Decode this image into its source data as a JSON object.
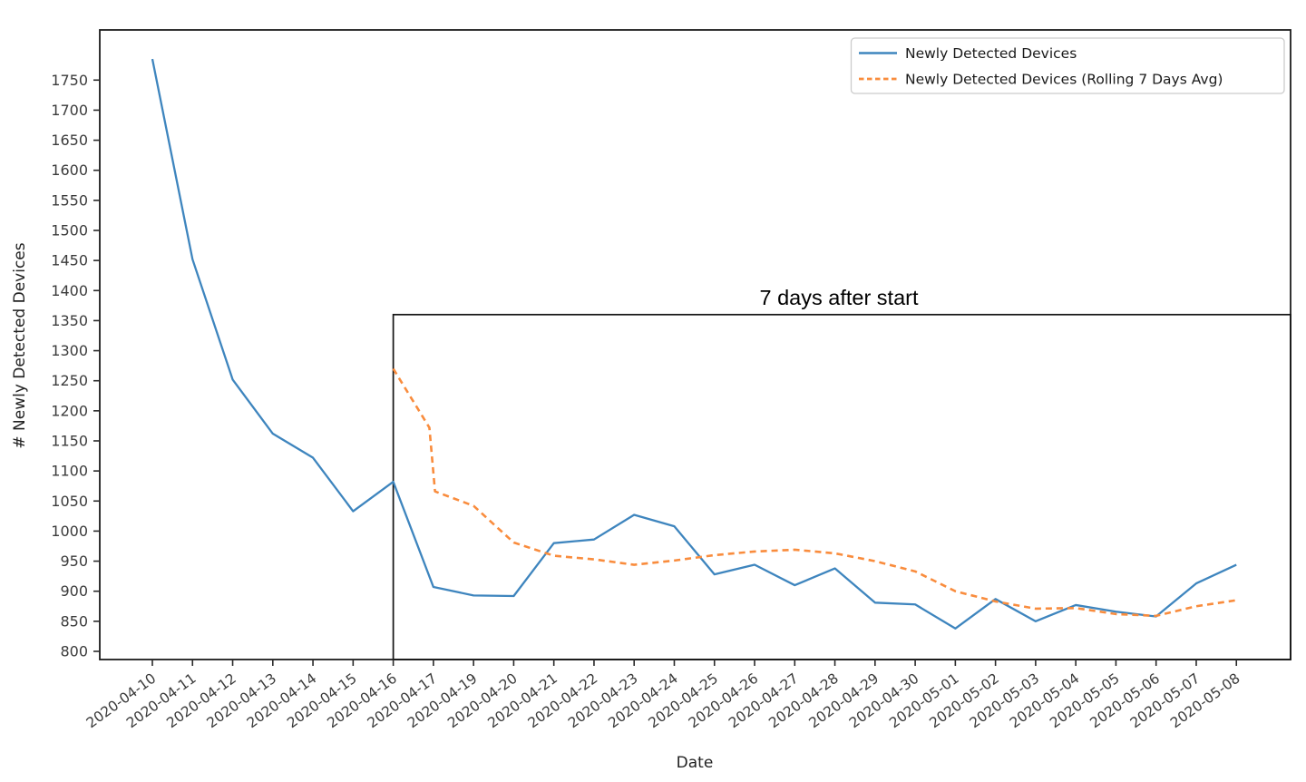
{
  "figure": {
    "background_color": "#ffffff",
    "spine_color": "#1c1c1c",
    "tick_color": "#2a2a2a"
  },
  "chart_data": {
    "type": "line",
    "title": "",
    "xlabel": "Date",
    "ylabel": "# Newly Detected Devices",
    "grid": false,
    "categories": [
      "2020-04-10",
      "2020-04-11",
      "2020-04-12",
      "2020-04-13",
      "2020-04-14",
      "2020-04-15",
      "2020-04-16",
      "2020-04-17",
      "2020-04-19",
      "2020-04-20",
      "2020-04-21",
      "2020-04-22",
      "2020-04-23",
      "2020-04-24",
      "2020-04-25",
      "2020-04-26",
      "2020-04-27",
      "2020-04-28",
      "2020-04-29",
      "2020-04-30",
      "2020-05-01",
      "2020-05-02",
      "2020-05-03",
      "2020-05-04",
      "2020-05-05",
      "2020-05-06",
      "2020-05-07",
      "2020-05-08"
    ],
    "y_ticks": [
      800,
      850,
      900,
      950,
      1000,
      1050,
      1100,
      1150,
      1200,
      1250,
      1300,
      1350,
      1400,
      1450,
      1500,
      1550,
      1600,
      1650,
      1700,
      1750
    ],
    "ylim": [
      786.4,
      1833.4
    ],
    "xlim_index_units": [
      -1.31,
      28.35
    ],
    "x_tick_label_rotation_deg": -36,
    "series": [
      {
        "name": "Newly Detected Devices",
        "color": "#3e85be",
        "style": "solid",
        "values": [
          1785,
          1452,
          1252,
          1162,
          1122,
          1033,
          1082,
          907,
          893,
          892,
          980,
          986,
          1027,
          1008,
          928,
          944,
          910,
          938,
          881,
          878,
          838,
          887,
          850,
          877,
          866,
          858,
          913,
          944
        ]
      },
      {
        "name": "Newly Detected Devices (Rolling 7 Days Avg)",
        "color": "#f98c3d",
        "style": "dashed",
        "points": [
          {
            "x": 6,
            "date": "2020-04-16",
            "value": 1270
          },
          {
            "x": 6.9,
            "date": "2020-04-17",
            "value": 1172
          },
          {
            "x": 7.04,
            "date": "2020-04-17",
            "value": 1066
          },
          {
            "x": 8,
            "date": "2020-04-19",
            "value": 1042
          },
          {
            "x": 9,
            "date": "2020-04-20",
            "value": 981
          },
          {
            "x": 10,
            "date": "2020-04-21",
            "value": 959
          },
          {
            "x": 11,
            "date": "2020-04-22",
            "value": 953
          },
          {
            "x": 12,
            "date": "2020-04-23",
            "value": 944
          },
          {
            "x": 13,
            "date": "2020-04-24",
            "value": 951
          },
          {
            "x": 14,
            "date": "2020-04-25",
            "value": 960
          },
          {
            "x": 15,
            "date": "2020-04-26",
            "value": 966
          },
          {
            "x": 16,
            "date": "2020-04-27",
            "value": 969
          },
          {
            "x": 17,
            "date": "2020-04-28",
            "value": 963
          },
          {
            "x": 18,
            "date": "2020-04-29",
            "value": 950
          },
          {
            "x": 19,
            "date": "2020-04-30",
            "value": 933
          },
          {
            "x": 20,
            "date": "2020-05-01",
            "value": 900
          },
          {
            "x": 21,
            "date": "2020-05-02",
            "value": 883
          },
          {
            "x": 22,
            "date": "2020-05-03",
            "value": 871
          },
          {
            "x": 23,
            "date": "2020-05-04",
            "value": 872
          },
          {
            "x": 24,
            "date": "2020-05-05",
            "value": 862
          },
          {
            "x": 25,
            "date": "2020-05-06",
            "value": 859
          },
          {
            "x": 26,
            "date": "2020-05-07",
            "value": 875
          },
          {
            "x": 27,
            "date": "2020-05-08",
            "value": 885
          }
        ]
      }
    ],
    "legend": {
      "position": "upper right",
      "entries": [
        "Newly Detected Devices",
        "Newly Detected Devices (Rolling 7 Days Avg)"
      ]
    },
    "annotation": {
      "text": "7 days after start",
      "box_from_date": "2020-04-16",
      "box_from_index": 6,
      "box_top_value": 1360,
      "box_extends_to_right_edge": true,
      "box_extends_to_bottom_axis": true
    }
  }
}
